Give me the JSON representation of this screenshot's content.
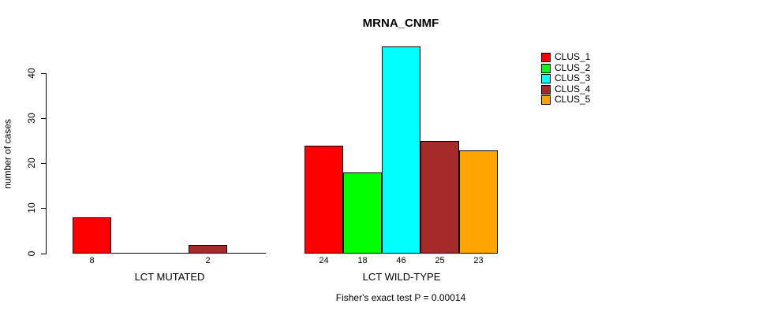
{
  "chart_data": {
    "type": "bar",
    "title": "MRNA_CNMF",
    "ylabel": "number of cases",
    "xlabel": "",
    "ylim": [
      0,
      46
    ],
    "yticks": [
      0,
      10,
      20,
      30,
      40
    ],
    "grid": false,
    "legend_position": "right",
    "categories": [
      "LCT MUTATED",
      "LCT WILD-TYPE"
    ],
    "series": [
      {
        "name": "CLUS_1",
        "color": "#FF0000",
        "values": [
          8,
          24
        ]
      },
      {
        "name": "CLUS_2",
        "color": "#00FF00",
        "values": [
          0,
          18
        ]
      },
      {
        "name": "CLUS_3",
        "color": "#00FFFF",
        "values": [
          0,
          46
        ]
      },
      {
        "name": "CLUS_4",
        "color": "#A52A2A",
        "values": [
          2,
          25
        ]
      },
      {
        "name": "CLUS_5",
        "color": "#FFA500",
        "values": [
          0,
          23
        ]
      }
    ],
    "bar_value_labels_note": "values printed under each nonzero bar",
    "annotation": "Fisher's exact test P = 0.00014"
  }
}
